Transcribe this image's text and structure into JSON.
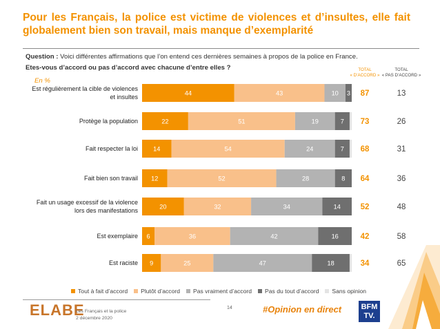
{
  "title": {
    "line1": "Pour les Français, la police est victime de violences et d’insultes, elle fait",
    "line2": "globalement bien son travail, mais manque d’exemplarité"
  },
  "question": {
    "prefix": "Question :",
    "text": "Voici différentes affirmations que l’on entend ces dernières semaines à propos de la police en France.",
    "sub": "Etes-vous d’accord ou pas d’accord avec chacune d’entre elles ?"
  },
  "unit_note": "En %",
  "column_headers": {
    "total_agree": [
      "TOTAL",
      "« D’ACCORD »"
    ],
    "total_disagree": [
      "TOTAL",
      "« PAS D’ACCORD »"
    ]
  },
  "colors": {
    "tout_a_fait": "#f39200",
    "plutot": "#f9c08a",
    "pas_vraiment": "#b3b3b3",
    "pas_du_tout": "#6f6f6f",
    "sans_opinion": "#e4e4e4",
    "brand": "#f39200"
  },
  "chart_data": {
    "type": "bar",
    "orientation": "horizontal",
    "stacked": true,
    "categories": [
      [
        "Est régulièrement la cible de violences",
        "et insultes"
      ],
      [
        "Protège la population"
      ],
      [
        "Fait respecter la loi"
      ],
      [
        "Fait bien son travail"
      ],
      [
        "Fait un usage excessif de la violence",
        "lors des manifestations"
      ],
      [
        "Est exemplaire"
      ],
      [
        "Est raciste"
      ]
    ],
    "series": [
      {
        "name": "Tout à fait d’accord",
        "values": [
          44,
          22,
          14,
          12,
          20,
          6,
          9
        ]
      },
      {
        "name": "Plutôt d’accord",
        "values": [
          43,
          51,
          54,
          52,
          32,
          36,
          25
        ]
      },
      {
        "name": "Pas vraiment d’accord",
        "values": [
          10,
          19,
          24,
          28,
          34,
          42,
          47
        ]
      },
      {
        "name": "Pas du tout d’accord",
        "values": [
          3,
          7,
          7,
          8,
          14,
          16,
          18
        ]
      },
      {
        "name": "Sans opinion",
        "values": [
          0,
          1,
          1,
          0,
          0,
          0,
          1
        ]
      }
    ],
    "total_agree": [
      87,
      73,
      68,
      64,
      52,
      42,
      34
    ],
    "total_disagree": [
      13,
      26,
      31,
      36,
      48,
      58,
      65
    ],
    "xlim": [
      0,
      100
    ],
    "legend_position": "bottom"
  },
  "footer": {
    "logo": "ELABE",
    "source_line1": "Les Français et la police",
    "source_line2": "2 décembre 2020",
    "page": "14",
    "hashtag": "#Opinion en direct",
    "partner_logo": [
      "BFM",
      "TV."
    ]
  }
}
